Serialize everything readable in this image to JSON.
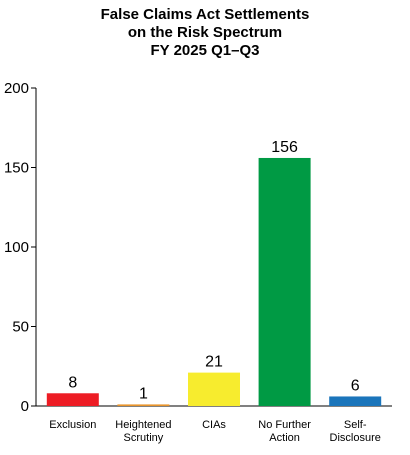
{
  "chart_data": {
    "type": "bar",
    "title_lines": [
      "False Claims Act Settlements",
      "on the Risk Spectrum",
      "FY 2025 Q1–Q3"
    ],
    "categories": [
      [
        "Exclusion"
      ],
      [
        "Heightened",
        "Scrutiny"
      ],
      [
        "CIAs"
      ],
      [
        "No Further",
        "Action"
      ],
      [
        "Self-",
        "Disclosure"
      ]
    ],
    "values": [
      8,
      1,
      21,
      156,
      6
    ],
    "data_labels": [
      "8",
      "1",
      "21",
      "156",
      "6"
    ],
    "colors": [
      "#ed1c24",
      "#e8942c",
      "#f7ec2e",
      "#009a44",
      "#1b75bb"
    ],
    "ylim": [
      0,
      200
    ],
    "yticks": [
      0,
      50,
      100,
      150,
      200
    ],
    "ytick_labels": [
      "0",
      "50",
      "100",
      "150",
      "200"
    ],
    "grid": false,
    "legend": "none",
    "xlabel": "",
    "ylabel": ""
  }
}
